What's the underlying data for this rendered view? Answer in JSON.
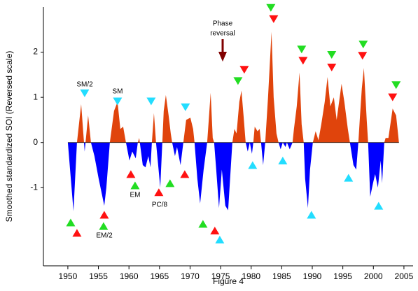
{
  "chart_data": {
    "type": "area",
    "x_label": "Figure 4",
    "y_label": "Smoothed standardized SOI (Reversed scale)",
    "xlim": [
      1946,
      2006.5
    ],
    "xticks": [
      1950,
      1955,
      1960,
      1965,
      1970,
      1975,
      1980,
      1985,
      1990,
      1995,
      2000,
      2005
    ],
    "ylim": [
      -2.73,
      3.0
    ],
    "yticks": [
      2,
      1,
      0,
      -1
    ],
    "positive_color": "#e0440c",
    "negative_color": "#0000ff",
    "x": [
      1950.0,
      1950.92,
      1951.49,
      1952.18,
      1952.75,
      1953.32,
      1953.78,
      1954.35,
      1955.04,
      1955.96,
      1956.3,
      1956.87,
      1957.56,
      1958.13,
      1958.59,
      1959.05,
      1959.51,
      1960.08,
      1960.54,
      1961.11,
      1961.45,
      1961.68,
      1962.26,
      1962.71,
      1963.17,
      1963.52,
      1963.75,
      1964.09,
      1964.43,
      1964.78,
      1965.12,
      1965.46,
      1965.69,
      1966.04,
      1966.49,
      1966.84,
      1967.07,
      1967.53,
      1967.87,
      1968.44,
      1968.9,
      1969.36,
      1970.05,
      1970.5,
      1970.73,
      1971.19,
      1971.65,
      1972.22,
      1972.8,
      1973.37,
      1973.71,
      1973.94,
      1974.28,
      1974.74,
      1975.2,
      1975.77,
      1976.23,
      1976.92,
      1977.26,
      1977.61,
      1978.06,
      1978.41,
      1978.75,
      1979.1,
      1979.44,
      1979.78,
      1980.13,
      1980.35,
      1980.58,
      1981.04,
      1981.39,
      1981.62,
      1981.96,
      1982.3,
      1982.76,
      1983.33,
      1983.68,
      1984.14,
      1984.48,
      1984.82,
      1985.17,
      1985.62,
      1985.85,
      1986.31,
      1986.77,
      1987.0,
      1987.46,
      1987.91,
      1988.26,
      1988.6,
      1988.83,
      1989.29,
      1989.63,
      1990.09,
      1990.55,
      1991.01,
      1991.47,
      1992.04,
      1992.5,
      1992.96,
      1993.53,
      1993.99,
      1994.79,
      1995.25,
      1995.82,
      1996.16,
      1996.74,
      1997.19,
      1997.54,
      1997.77,
      1998.11,
      1998.45,
      1998.91,
      1999.14,
      1999.48,
      1999.94,
      2000.29,
      2000.74,
      2001.2,
      2001.43,
      2001.78,
      2002.0,
      2002.46,
      2003.15,
      2003.72,
      2004.07,
      2004.18
    ],
    "values": [
      0,
      -1.52,
      0,
      0.85,
      -0.2,
      0.6,
      0,
      -0.3,
      -0.8,
      -1.4,
      -1.0,
      0,
      0.7,
      0.9,
      0.3,
      0.35,
      0,
      -0.4,
      -0.2,
      -0.35,
      0,
      0.1,
      -0.5,
      -0.55,
      -0.3,
      -0.55,
      0,
      0.65,
      0,
      -0.5,
      -1.0,
      0,
      0.7,
      1.05,
      0.6,
      0.2,
      0,
      -0.3,
      -0.1,
      -0.5,
      0,
      0.5,
      0.55,
      0.3,
      0,
      -0.8,
      -1.35,
      -0.6,
      0,
      1.1,
      0.1,
      0,
      -0.6,
      -1.45,
      -0.6,
      -1.4,
      -1.5,
      0,
      0.3,
      0.2,
      0.9,
      1.15,
      0.6,
      0,
      -0.2,
      0,
      -0.25,
      0,
      0.35,
      0.25,
      0.3,
      0,
      -0.5,
      0,
      1.0,
      2.45,
      1.0,
      0.2,
      0,
      -0.15,
      0,
      -0.1,
      0,
      -0.15,
      0,
      0.3,
      0.8,
      1.55,
      0.4,
      0,
      -0.8,
      -1.45,
      -0.6,
      0,
      0.25,
      0.05,
      0.4,
      0.9,
      1.45,
      0.8,
      1.0,
      0.5,
      1.3,
      0.9,
      0.3,
      0,
      -0.5,
      -0.6,
      0,
      0.5,
      1.2,
      1.65,
      0.5,
      0,
      -1.2,
      -0.9,
      -0.7,
      -1.0,
      -0.4,
      -0.9,
      0,
      0.1,
      0.1,
      0.75,
      0.6,
      0.15,
      0
    ],
    "markers": [
      {
        "color": "#22dd22",
        "direction": "up",
        "x": [
          1950.46,
          1955.84,
          1961.0,
          1966.72,
          1972.11
        ],
        "values": [
          -1.77,
          -1.85,
          -0.95,
          -0.9,
          -1.8
        ]
      },
      {
        "color": "#ff1111",
        "direction": "up",
        "x": [
          1951.49,
          1955.96,
          1960.31,
          1964.89,
          1969.13,
          1974.05
        ],
        "values": [
          -2.0,
          -1.6,
          -0.7,
          -1.1,
          -0.7,
          -1.95
        ]
      },
      {
        "color": "#22ddff",
        "direction": "down",
        "x": [
          1952.75,
          1958.13,
          1963.63,
          1969.24
        ],
        "values": [
          1.09,
          0.91,
          0.91,
          0.78
        ]
      },
      {
        "color": "#22ddff",
        "direction": "up",
        "x": [
          1974.86,
          1980.24,
          1985.17,
          1989.86,
          1995.93,
          2000.86
        ],
        "values": [
          -2.15,
          -0.5,
          -0.4,
          -1.6,
          -0.78,
          -1.4
        ]
      },
      {
        "color": "#22dd22",
        "direction": "down",
        "x": [
          1977.84,
          1983.22,
          1988.26,
          1993.18,
          1998.34,
          2003.72
        ],
        "values": [
          1.36,
          2.98,
          2.06,
          1.94,
          2.17,
          1.27
        ]
      },
      {
        "color": "#ff1111",
        "direction": "down",
        "x": [
          1978.87,
          1983.68,
          1988.49,
          1993.18,
          1998.22,
          2003.15
        ],
        "values": [
          1.61,
          2.73,
          1.81,
          1.66,
          1.92,
          1.0
        ]
      }
    ],
    "annotations": [
      "SM/2",
      "SM",
      "EM/2",
      "EM",
      "PC/8",
      "Phase",
      "reversal"
    ]
  }
}
